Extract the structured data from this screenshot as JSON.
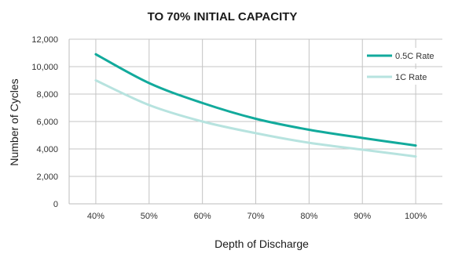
{
  "chart_data": {
    "type": "line",
    "title": "TO 70% INITIAL CAPACITY",
    "xlabel": "Depth of Discharge",
    "ylabel": "Number of Cycles",
    "categories": [
      "40%",
      "50%",
      "60%",
      "70%",
      "80%",
      "90%",
      "100%"
    ],
    "x": [
      40,
      50,
      60,
      70,
      80,
      90,
      100
    ],
    "ylim": [
      0,
      12000
    ],
    "yticks": [
      "0",
      "2,000",
      "4,000",
      "6,000",
      "8,000",
      "10,000",
      "12,000"
    ],
    "grid": true,
    "legend_position": "top-right",
    "series": [
      {
        "name": "0.5C Rate",
        "color": "#12aa9c",
        "values": [
          10900,
          8800,
          7350,
          6200,
          5400,
          4800,
          4250
        ]
      },
      {
        "name": "1C Rate",
        "color": "#b7e3df",
        "values": [
          9000,
          7200,
          6000,
          5150,
          4450,
          3950,
          3450
        ]
      }
    ]
  }
}
